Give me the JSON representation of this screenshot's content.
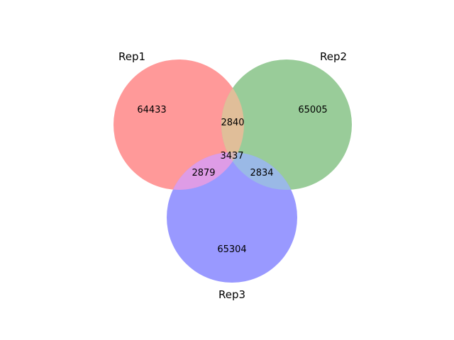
{
  "venn": {
    "sets": [
      {
        "name": "Rep1",
        "color": "#ff9999"
      },
      {
        "name": "Rep2",
        "color": "#99cc99"
      },
      {
        "name": "Rep3",
        "color": "#9999ff"
      }
    ],
    "region_counts": {
      "rep1_only": "64433",
      "rep2_only": "65005",
      "rep3_only": "65304",
      "rep1_rep2": "2840",
      "rep1_rep3": "2879",
      "rep2_rep3": "2834",
      "rep1_rep2_rep3": "3437"
    },
    "overlap_colors": {
      "rep1_rep2": "#e0be99",
      "rep1_rep3": "#de9ce6",
      "rep2_rep3": "#9ab9e6",
      "rep1_rep2_rep3": "#d6b7b7"
    }
  }
}
